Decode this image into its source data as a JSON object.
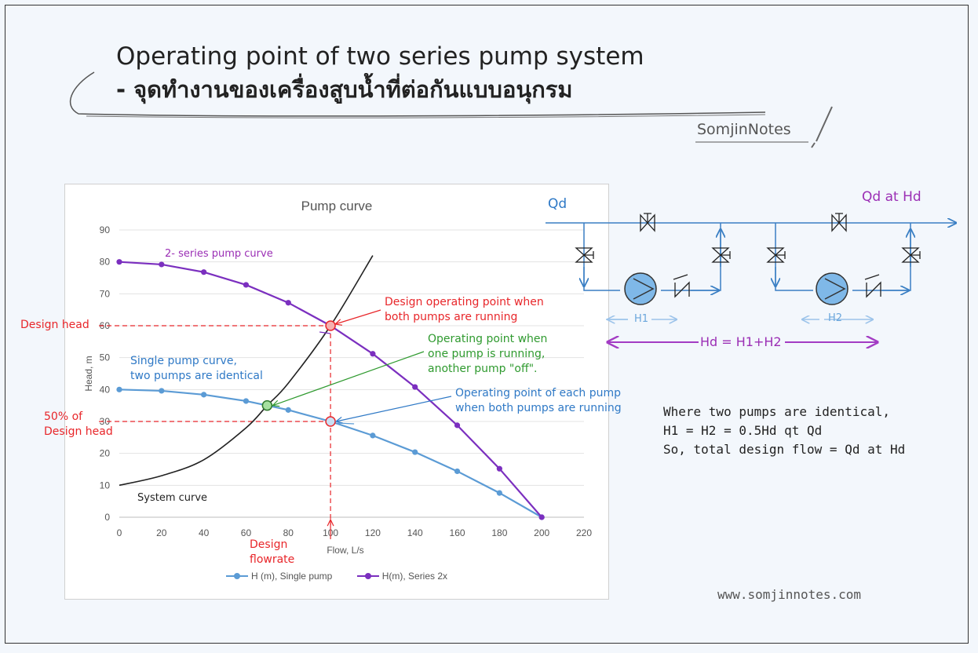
{
  "header": {
    "title": "Operating point of two series pump system",
    "subtitle": "- จุดทำงานของเครื่องสูบน้ำที่ต่อกันแบบอนุกรม",
    "brand": "SomjinNotes"
  },
  "chart_data": {
    "type": "line",
    "title": "Pump curve",
    "xlabel": "Flow, L/s",
    "ylabel": "Head, m",
    "xlim": [
      0,
      220
    ],
    "ylim": [
      0,
      90
    ],
    "x_ticks": [
      0,
      20,
      40,
      60,
      80,
      100,
      120,
      140,
      160,
      180,
      200,
      220
    ],
    "y_ticks": [
      0,
      10,
      20,
      30,
      40,
      50,
      60,
      70,
      80,
      90
    ],
    "grid": "horizontal",
    "legend_position": "bottom",
    "series": [
      {
        "name": "H (m), Single pump",
        "color": "#5b9bd5",
        "x": [
          0,
          20,
          40,
          60,
          80,
          100,
          120,
          140,
          160,
          180,
          200
        ],
        "y": [
          40,
          39.6,
          38.4,
          36.4,
          33.6,
          30,
          25.6,
          20.4,
          14.4,
          7.6,
          0
        ]
      },
      {
        "name": "H(m), Series 2x",
        "color": "#7b2fbf",
        "x": [
          0,
          20,
          40,
          60,
          80,
          100,
          120,
          140,
          160,
          180,
          200
        ],
        "y": [
          80,
          79.2,
          76.8,
          72.8,
          67.2,
          60,
          51.2,
          40.8,
          28.8,
          15.2,
          0
        ]
      },
      {
        "color": "#222222",
        "x": [
          0,
          20,
          40,
          60,
          70,
          80,
          100,
          120
        ],
        "y": [
          10,
          13,
          18,
          28,
          35,
          42,
          60,
          82
        ]
      }
    ],
    "design_point": {
      "x": 100,
      "y": 60
    },
    "half_head_point": {
      "x": 100,
      "y": 30
    },
    "single_operating_point": {
      "x": 70,
      "y": 35
    }
  },
  "annotations": {
    "series_curve": "2- series pump curve",
    "design_op_1": "Design operating point when",
    "design_op_2": "both pumps are running",
    "one_pump_1": "Operating point when",
    "one_pump_2": "one pump is running,",
    "one_pump_3": "another pump \"off\".",
    "single_curve_1": "Single pump curve,",
    "single_curve_2": "two pumps are identical",
    "each_pump_1": "Operating point of each pump",
    "each_pump_2": "when both pumps are running",
    "design_head": "Design head",
    "half_head_1": "50% of",
    "half_head_2": "Design head",
    "system_curve": "System curve",
    "design_flow_1": "Design",
    "design_flow_2": "flowrate"
  },
  "diagram": {
    "qd": "Qd",
    "qd_at_hd": "Qd at Hd",
    "h1": "H1",
    "h2": "H2",
    "hd": "Hd = H1+H2"
  },
  "notes": {
    "line1": "Where two pumps are identical,",
    "line2": "H1 = H2 = 0.5Hd qt Qd",
    "line3": "So, total design flow = Qd at Hd"
  },
  "website": "www.somjinnotes.com"
}
